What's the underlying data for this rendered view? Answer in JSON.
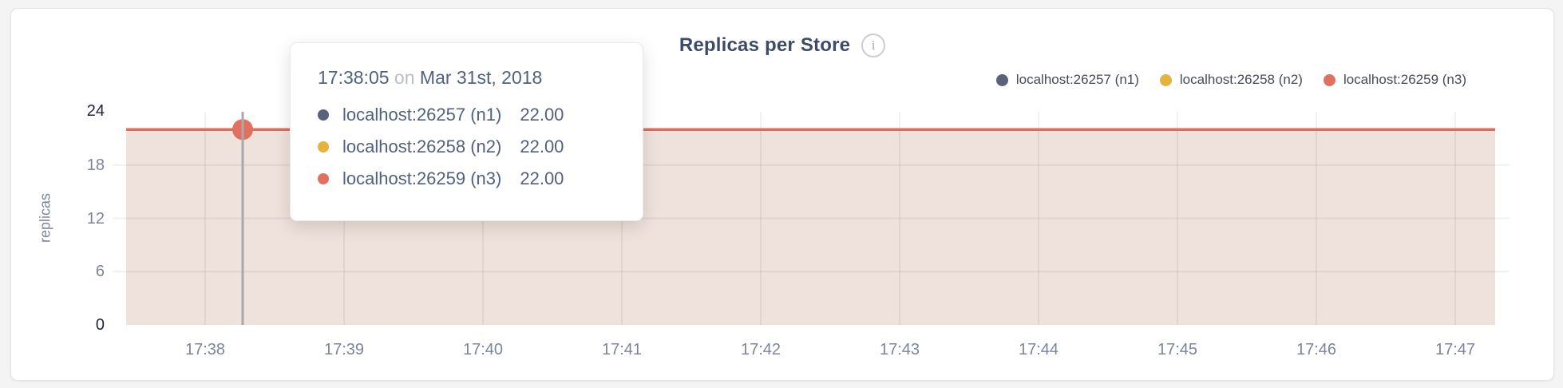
{
  "page": {
    "background": "#f4f4f5"
  },
  "card": {
    "title": "Replicas per Store",
    "info_icon_glyph": "i"
  },
  "legend": {
    "items": [
      {
        "label": "localhost:26257 (n1)",
        "color": "#5a627b"
      },
      {
        "label": "localhost:26258 (n2)",
        "color": "#e5b43f"
      },
      {
        "label": "localhost:26259 (n3)",
        "color": "#e2705f"
      }
    ]
  },
  "tooltip": {
    "time": "17:38:05",
    "separator": "on",
    "date": "Mar 31st, 2018",
    "rows": [
      {
        "label": "localhost:26257 (n1)",
        "value": "22.00",
        "color": "#5a627b"
      },
      {
        "label": "localhost:26258 (n2)",
        "value": "22.00",
        "color": "#e5b43f"
      },
      {
        "label": "localhost:26259 (n3)",
        "value": "22.00",
        "color": "#e2705f"
      }
    ]
  },
  "chart_data": {
    "type": "line",
    "title": "Replicas per Store",
    "ylabel": "replicas",
    "xlabel": "",
    "x_ticks": [
      "17:38",
      "17:39",
      "17:40",
      "17:41",
      "17:42",
      "17:43",
      "17:44",
      "17:45",
      "17:46",
      "17:47"
    ],
    "y_ticks": [
      0,
      6,
      12,
      18,
      24
    ],
    "ylim": [
      0,
      24
    ],
    "grid": true,
    "legend_position": "top-right",
    "series": [
      {
        "name": "localhost:26257 (n1)",
        "color": "#5a627b",
        "value_constant": 22
      },
      {
        "name": "localhost:26258 (n2)",
        "color": "#e5b43f",
        "value_constant": 22
      },
      {
        "name": "localhost:26259 (n3)",
        "color": "#e2705f",
        "value_constant": 22
      }
    ],
    "note": "all three series overlap as one flat line at 22 replicas from 17:38 to 17:47",
    "highlighted_point": {
      "time": "17:38:05",
      "value": 22
    },
    "line_color": "#dc6e61",
    "fill_color": "#efe1db",
    "crosshair_color": "#a9a9ab"
  }
}
